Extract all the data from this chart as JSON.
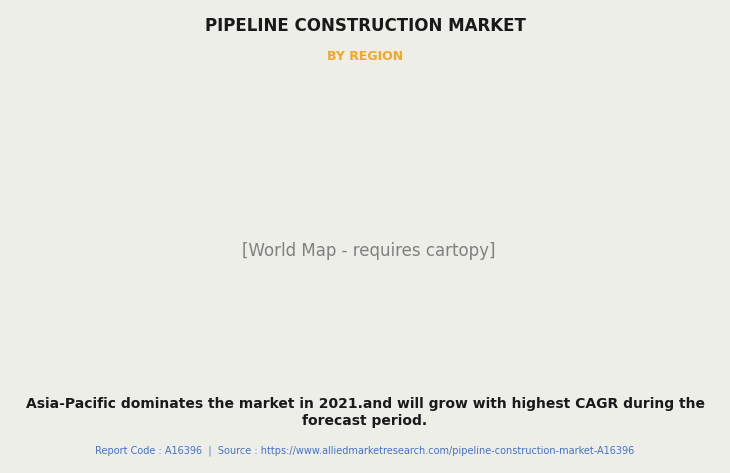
{
  "title": "PIPELINE CONSTRUCTION MARKET",
  "subtitle": "BY REGION",
  "subtitle_color": "#F5A623",
  "background_color": "#EEEEE8",
  "title_color": "#1a1a1a",
  "body_text_line1": "Asia-Pacific dominates the market in 2021.and will grow with highest CAGR during the",
  "body_text_line2": "forecast period.",
  "footer_text": "Report Code : A16396  |  Source : https://www.alliedmarketresearch.com/pipeline-construction-market-A16396",
  "footer_color": "#4472C4",
  "map_land_color": "#8DC898",
  "map_usa_color": "#E8E8E8",
  "map_ocean_color": "#EEEEE8",
  "map_shadow_color": "#AAAAAA",
  "map_border_color": "#8BB8D8",
  "map_dark_areas": "#6A9A6A",
  "title_fontsize": 12,
  "subtitle_fontsize": 9,
  "body_fontsize": 10,
  "footer_fontsize": 7
}
